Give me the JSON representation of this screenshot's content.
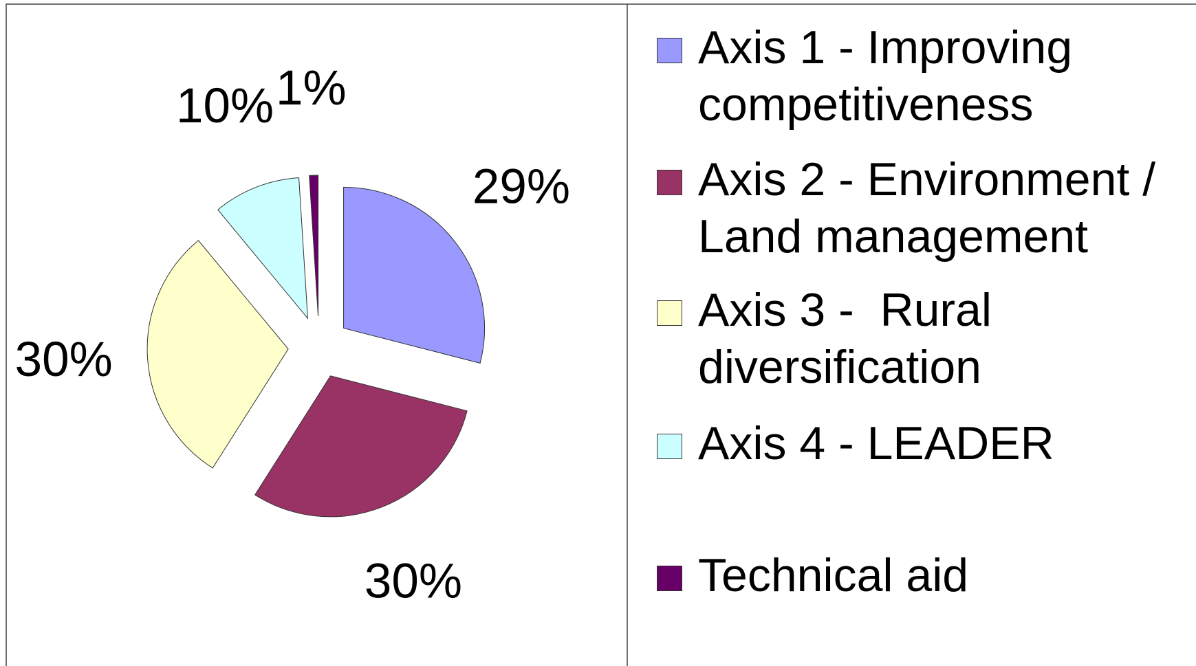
{
  "chart_data": {
    "type": "pie",
    "categories": [
      "Axis 1 - Improving competitiveness",
      "Axis 2 - Environment / Land management",
      "Axis 3 -  Rural diversification",
      "Axis 4 - LEADER",
      "Technical aid"
    ],
    "values": [
      29,
      30,
      30,
      10,
      1
    ],
    "value_labels": [
      "29%",
      "30%",
      "30%",
      "10%",
      "1%"
    ],
    "colors": [
      "#9999ff",
      "#993366",
      "#ffffcc",
      "#ccffff",
      "#660066"
    ],
    "legend": "right"
  }
}
